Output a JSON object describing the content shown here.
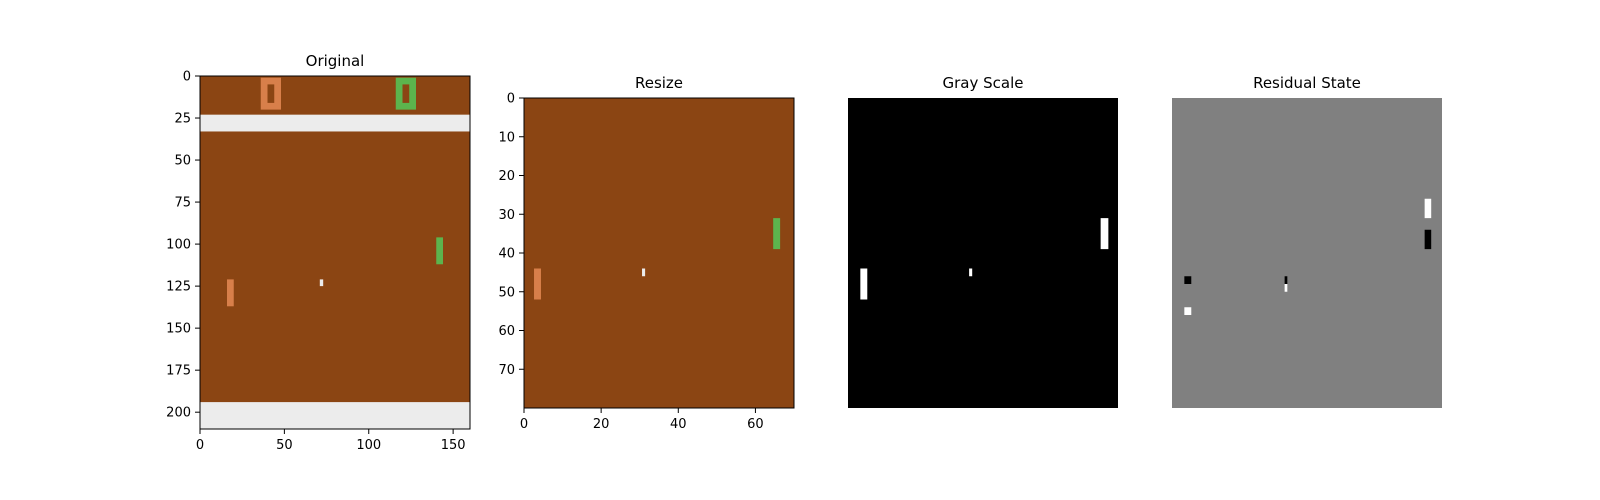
{
  "colors": {
    "court": "#8b4513",
    "wall": "#ececec",
    "player_orange": "#d87f4a",
    "player_green": "#5cb44d",
    "ball": "#ececec",
    "gray_bg": "#808080",
    "black": "#000000",
    "white": "#ffffff"
  },
  "chart_data": [
    {
      "type": "image",
      "title": "Original",
      "image_width": 160,
      "image_height": 210,
      "xlim": [
        0,
        160
      ],
      "ylim": [
        210,
        0
      ],
      "xticks": [
        0,
        50,
        100,
        150
      ],
      "yticks": [
        0,
        25,
        50,
        75,
        100,
        125,
        150,
        175,
        200
      ],
      "background": "court",
      "objects": [
        {
          "name": "top-wall",
          "x0": 0,
          "x1": 160,
          "y0": 23,
          "y1": 33,
          "color": "wall"
        },
        {
          "name": "bottom-wall",
          "x0": 0,
          "x1": 160,
          "y0": 194,
          "y1": 210,
          "color": "wall"
        },
        {
          "name": "score-left-outer",
          "x0": 36,
          "x1": 48,
          "y0": 1,
          "y1": 20,
          "color": "player_orange"
        },
        {
          "name": "score-left-inner",
          "x0": 40,
          "x1": 44,
          "y0": 5,
          "y1": 16,
          "color": "court"
        },
        {
          "name": "score-right-outer",
          "x0": 116,
          "x1": 128,
          "y0": 1,
          "y1": 20,
          "color": "player_green"
        },
        {
          "name": "score-right-inner",
          "x0": 120,
          "x1": 124,
          "y0": 5,
          "y1": 16,
          "color": "court"
        },
        {
          "name": "paddle-green",
          "x0": 140,
          "x1": 144,
          "y0": 96,
          "y1": 112,
          "color": "player_green"
        },
        {
          "name": "paddle-orange",
          "x0": 16,
          "x1": 20,
          "y0": 121,
          "y1": 137,
          "color": "player_orange"
        },
        {
          "name": "ball",
          "x0": 71,
          "x1": 73,
          "y0": 121,
          "y1": 125,
          "color": "ball"
        }
      ]
    },
    {
      "type": "image",
      "title": "Resize",
      "image_width": 70,
      "image_height": 80,
      "xlim": [
        0,
        70
      ],
      "ylim": [
        80,
        0
      ],
      "xticks": [
        0,
        20,
        40,
        60
      ],
      "yticks": [
        0,
        10,
        20,
        30,
        40,
        50,
        60,
        70
      ],
      "background": "court",
      "objects": [
        {
          "name": "paddle-green",
          "x0": 64.6,
          "x1": 66.4,
          "y0": 31,
          "y1": 39,
          "color": "player_green"
        },
        {
          "name": "paddle-orange",
          "x0": 2.6,
          "x1": 4.4,
          "y0": 44,
          "y1": 52,
          "color": "player_orange"
        },
        {
          "name": "ball",
          "x0": 30.6,
          "x1": 31.4,
          "y0": 44,
          "y1": 46,
          "color": "ball"
        }
      ]
    },
    {
      "type": "image",
      "title": "Gray Scale",
      "image_width": 70,
      "image_height": 80,
      "background": "black",
      "objects": [
        {
          "name": "paddle-right",
          "x0": 65.5,
          "x1": 67.5,
          "y0": 31,
          "y1": 39,
          "color": "white"
        },
        {
          "name": "paddle-left",
          "x0": 3.2,
          "x1": 5,
          "y0": 44,
          "y1": 52,
          "color": "white"
        },
        {
          "name": "ball",
          "x0": 31.4,
          "x1": 32.2,
          "y0": 44,
          "y1": 46,
          "color": "white"
        }
      ]
    },
    {
      "type": "image",
      "title": "Residual State",
      "image_width": 70,
      "image_height": 80,
      "background": "gray_bg",
      "objects": [
        {
          "name": "paddle-right-new",
          "x0": 65.5,
          "x1": 67.2,
          "y0": 26,
          "y1": 31,
          "color": "white"
        },
        {
          "name": "paddle-right-old",
          "x0": 65.5,
          "x1": 67.2,
          "y0": 34,
          "y1": 39,
          "color": "black"
        },
        {
          "name": "paddle-left-old",
          "x0": 3.2,
          "x1": 5,
          "y0": 46,
          "y1": 48,
          "color": "black"
        },
        {
          "name": "paddle-left-new",
          "x0": 3.2,
          "x1": 5,
          "y0": 54,
          "y1": 56,
          "color": "white"
        },
        {
          "name": "ball-new",
          "x0": 29.2,
          "x1": 29.9,
          "y0": 48,
          "y1": 50,
          "color": "white"
        },
        {
          "name": "ball-old",
          "x0": 29.2,
          "x1": 29.9,
          "y0": 46,
          "y1": 48,
          "color": "black"
        }
      ]
    }
  ]
}
